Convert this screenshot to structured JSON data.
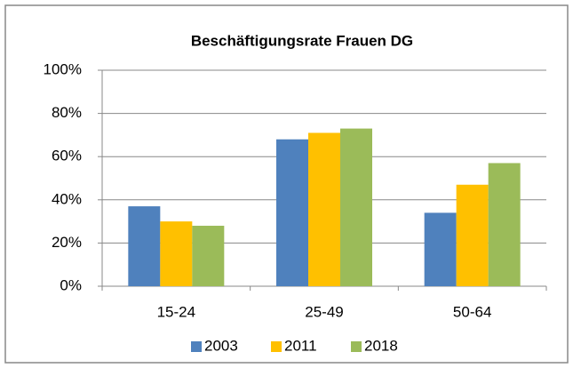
{
  "chart_data": {
    "type": "bar",
    "title": "Beschäftigungsrate Frauen DG",
    "categories": [
      "15-24",
      "25-49",
      "50-64"
    ],
    "series": [
      {
        "name": "2003",
        "color": "#4f81bd",
        "values": [
          37,
          68,
          34
        ]
      },
      {
        "name": "2011",
        "color": "#ffc000",
        "values": [
          30,
          71,
          47
        ]
      },
      {
        "name": "2018",
        "color": "#9bbb59",
        "values": [
          28,
          73,
          57
        ]
      }
    ],
    "ylim": [
      0,
      100
    ],
    "yticks": [
      {
        "value": 0,
        "label": "0%"
      },
      {
        "value": 20,
        "label": "20%"
      },
      {
        "value": 40,
        "label": "40%"
      },
      {
        "value": 60,
        "label": "60%"
      },
      {
        "value": 80,
        "label": "80%"
      },
      {
        "value": 100,
        "label": "100%"
      }
    ],
    "grid": true,
    "legend": "bottom"
  }
}
